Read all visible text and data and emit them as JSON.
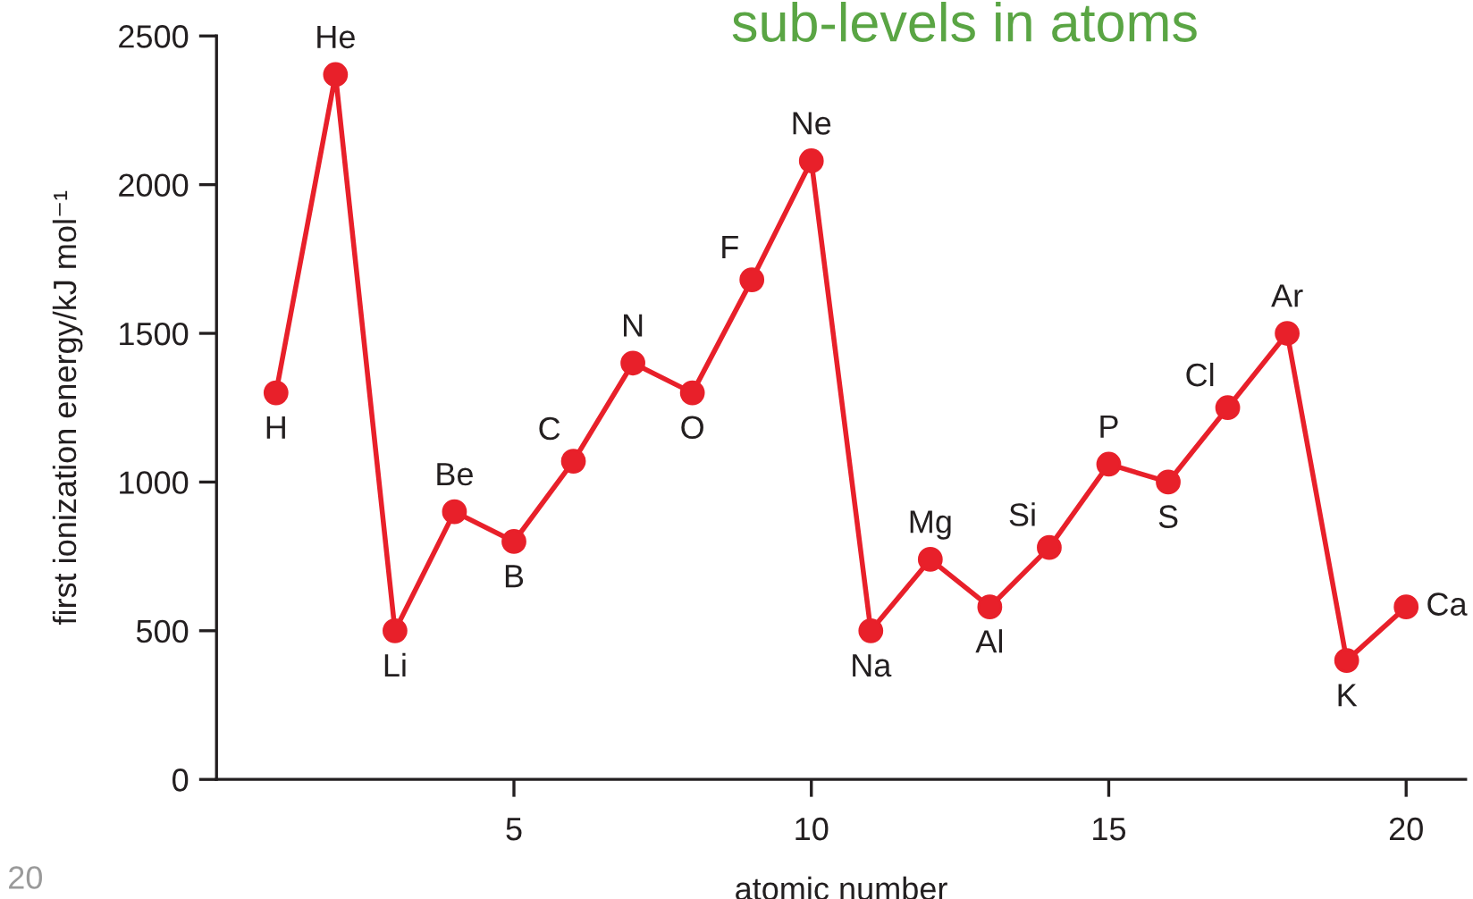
{
  "chart_data": {
    "type": "line",
    "title": "sub-levels in atoms",
    "xlabel": "atomic number",
    "ylabel": "first ionization energy/kJ mol⁻¹",
    "x": [
      1,
      2,
      3,
      4,
      5,
      6,
      7,
      8,
      9,
      10,
      11,
      12,
      13,
      14,
      15,
      16,
      17,
      18,
      19,
      20
    ],
    "series": [
      {
        "color": "#e8202a",
        "values": [
          1300,
          2370,
          500,
          900,
          800,
          1070,
          1400,
          1300,
          1680,
          2080,
          500,
          740,
          580,
          780,
          1060,
          1000,
          1250,
          1500,
          400,
          580
        ]
      }
    ],
    "xlim": [
      0,
      21
    ],
    "ylim": [
      0,
      2500
    ],
    "xticks": [
      5,
      10,
      15,
      20
    ],
    "yticks": [
      0,
      500,
      1000,
      1500,
      2000,
      2500
    ],
    "marker": "circle",
    "line_style": "solid",
    "annotations": [
      {
        "text": "H",
        "x": 1,
        "y": 1300
      },
      {
        "text": "He",
        "x": 2,
        "y": 2370
      },
      {
        "text": "Li",
        "x": 3,
        "y": 500
      },
      {
        "text": "Be",
        "x": 4,
        "y": 900
      },
      {
        "text": "B",
        "x": 5,
        "y": 800
      },
      {
        "text": "C",
        "x": 6,
        "y": 1070
      },
      {
        "text": "N",
        "x": 7,
        "y": 1400
      },
      {
        "text": "O",
        "x": 8,
        "y": 1300
      },
      {
        "text": "F",
        "x": 9,
        "y": 1680
      },
      {
        "text": "Ne",
        "x": 10,
        "y": 2080
      },
      {
        "text": "Na",
        "x": 11,
        "y": 500
      },
      {
        "text": "Mg",
        "x": 12,
        "y": 740
      },
      {
        "text": "Al",
        "x": 13,
        "y": 580
      },
      {
        "text": "Si",
        "x": 14,
        "y": 780
      },
      {
        "text": "P",
        "x": 15,
        "y": 1060
      },
      {
        "text": "S",
        "x": 16,
        "y": 1000
      },
      {
        "text": "Cl",
        "x": 17,
        "y": 1250
      },
      {
        "text": "Ar",
        "x": 18,
        "y": 1500
      },
      {
        "text": "K",
        "x": 19,
        "y": 400
      },
      {
        "text": "Ca",
        "x": 20,
        "y": 580
      },
      "20"
    ]
  }
}
